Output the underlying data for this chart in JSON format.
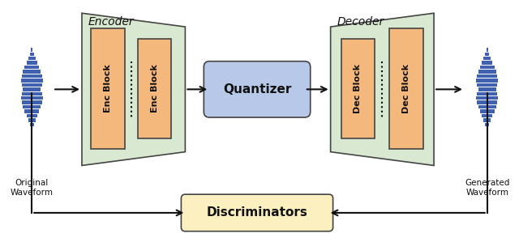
{
  "bg_color": "#ffffff",
  "encoder_color": "#d9e8d0",
  "enc_block_color": "#f5b87c",
  "quantizer_color": "#b8c8e8",
  "decoder_color": "#d9e8d0",
  "dec_block_color": "#f5b87c",
  "discriminator_color": "#fdf0c0",
  "waveform_color": "#4060b0",
  "arrow_color": "#111111",
  "text_color": "#111111",
  "border_color": "#444444",
  "enc_label": "Encoder",
  "dec_label": "Decoder",
  "quantizer_label": "Quantizer",
  "discriminator_label": "Discriminators",
  "orig_waveform_label": "Original\nWaveform",
  "gen_waveform_label": "Generated\nWaveform",
  "enc_block1_label": "Enc Block",
  "enc_block2_label": "Enc Block",
  "dec_block1_label": "Dec Block",
  "dec_block2_label": "Dec Block",
  "waveform_widths": [
    6,
    14,
    22,
    30,
    38,
    46,
    50,
    46,
    38,
    34,
    46,
    52,
    44,
    36,
    28,
    20,
    10,
    4
  ],
  "figw": 6.4,
  "figh": 2.99
}
